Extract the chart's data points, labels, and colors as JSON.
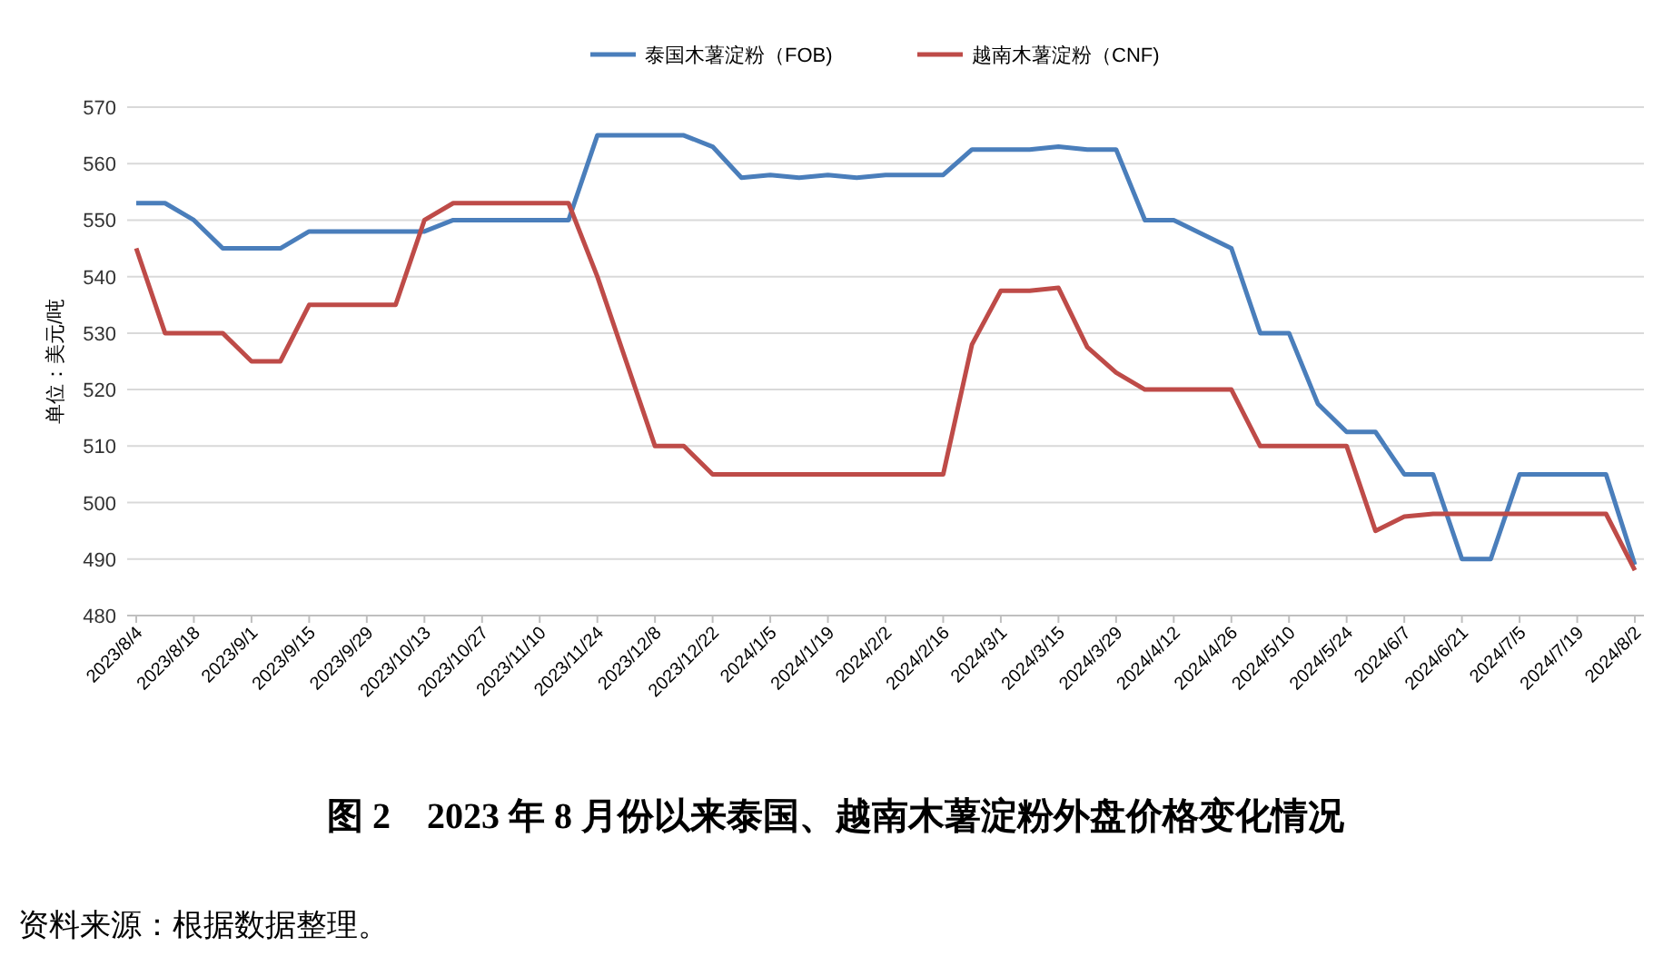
{
  "chart_data": {
    "type": "line",
    "title": "图 2　2023 年 8 月份以来泰国、越南木薯淀粉外盘价格变化情况",
    "ylabel": "单位：美元/吨",
    "annotations": [
      "资料来源：根据数据整理。"
    ],
    "categories": [
      "2023/8/4",
      null,
      "2023/8/18",
      null,
      "2023/9/1",
      null,
      "2023/9/15",
      null,
      "2023/9/29",
      null,
      "2023/10/13",
      null,
      "2023/10/27",
      null,
      "2023/11/10",
      null,
      "2023/11/24",
      null,
      "2023/12/8",
      null,
      "2023/12/22",
      null,
      "2024/1/5",
      null,
      "2024/1/19",
      null,
      "2024/2/2",
      null,
      "2024/2/16",
      null,
      "2024/3/1",
      null,
      "2024/3/15",
      null,
      "2024/3/29",
      null,
      "2024/4/12",
      null,
      "2024/4/26",
      null,
      "2024/5/10",
      null,
      "2024/5/24",
      null,
      "2024/6/7",
      null,
      "2024/6/21",
      null,
      "2024/7/5",
      null,
      "2024/7/19",
      null,
      "2024/8/2"
    ],
    "series": [
      {
        "name": "泰国木薯淀粉（FOB)",
        "color": "#4a7ebb",
        "values": [
          553,
          553,
          550,
          545,
          545,
          545,
          548,
          548,
          548,
          548,
          548,
          550,
          550,
          550,
          550,
          550,
          565,
          565,
          565,
          565,
          563,
          557.5,
          558,
          557.5,
          558,
          557.5,
          558,
          558,
          558,
          562.5,
          562.5,
          562.5,
          563,
          562.5,
          562.5,
          550,
          550,
          547.5,
          545,
          530,
          530,
          517.5,
          512.5,
          512.5,
          505,
          505,
          490,
          490,
          505,
          505,
          505,
          505,
          489
        ]
      },
      {
        "name": "越南木薯淀粉（CNF)",
        "color": "#be4b48",
        "values": [
          545,
          530,
          530,
          530,
          525,
          525,
          535,
          535,
          535,
          535,
          550,
          553,
          553,
          553,
          553,
          553,
          540,
          525,
          510,
          510,
          505,
          505,
          505,
          505,
          505,
          505,
          505,
          505,
          505,
          528,
          537.5,
          537.5,
          538,
          527.5,
          523,
          520,
          520,
          520,
          520,
          510,
          510,
          510,
          510,
          495,
          497.5,
          498,
          498,
          498,
          498,
          498,
          498,
          498,
          488
        ]
      }
    ],
    "ylim": [
      480,
      570
    ],
    "yticks": [
      480,
      490,
      500,
      510,
      520,
      530,
      540,
      550,
      560,
      570
    ],
    "grid": "y",
    "legend": "top",
    "marker": "none",
    "line_style": "solid"
  }
}
